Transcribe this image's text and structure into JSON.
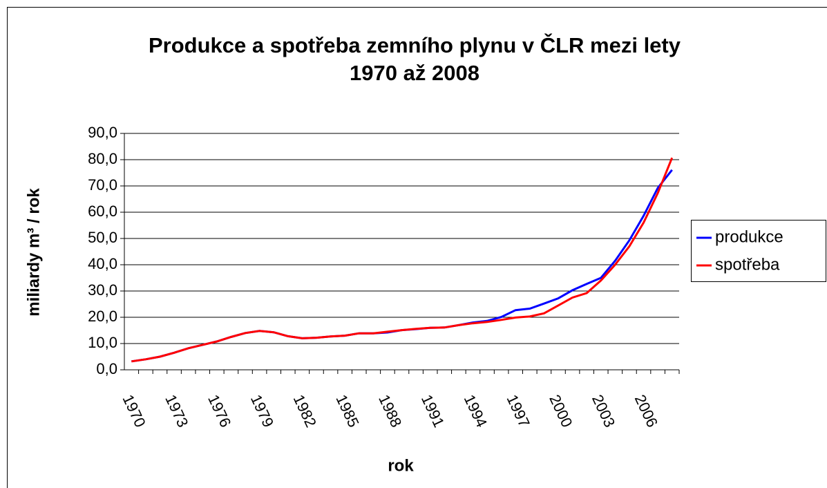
{
  "chart_data": {
    "type": "line",
    "title": [
      "Produkce a spotřeba zemního plynu v ČLR mezi lety",
      "1970 až 2008"
    ],
    "x_label": "rok",
    "y_label": "miliardy m³ / rok",
    "categories": [
      "1970",
      null,
      null,
      "1973",
      null,
      null,
      "1976",
      null,
      null,
      "1979",
      null,
      null,
      "1982",
      null,
      null,
      "1985",
      null,
      null,
      "1988",
      null,
      null,
      "1991",
      null,
      null,
      "1994",
      null,
      null,
      "1997",
      null,
      null,
      "2000",
      null,
      null,
      "2003",
      null,
      null,
      "2006",
      null,
      null
    ],
    "series": [
      {
        "name": "produkce",
        "color": "#0000ff",
        "values": [
          3.2,
          4.0,
          5.0,
          6.5,
          8.2,
          9.5,
          10.8,
          12.5,
          14.0,
          14.8,
          14.3,
          12.8,
          12.0,
          12.2,
          12.7,
          13.0,
          13.9,
          13.9,
          14.2,
          15.1,
          15.5,
          16.0,
          16.1,
          17.0,
          18.0,
          18.6,
          20.1,
          22.7,
          23.3,
          25.2,
          27.2,
          30.3,
          32.7,
          35.0,
          41.5,
          49.3,
          58.6,
          69.2,
          76.1
        ]
      },
      {
        "name": "spotřeba",
        "color": "#ff0000",
        "values": [
          3.2,
          4.0,
          5.0,
          6.5,
          8.2,
          9.5,
          10.8,
          12.5,
          14.0,
          14.8,
          14.3,
          12.8,
          12.0,
          12.2,
          12.7,
          13.0,
          13.9,
          13.9,
          14.5,
          15.1,
          15.6,
          16.0,
          16.1,
          17.0,
          17.7,
          18.2,
          19.0,
          19.9,
          20.3,
          21.5,
          24.5,
          27.5,
          29.2,
          34.0,
          40.0,
          47.0,
          56.0,
          67.3,
          80.7
        ]
      }
    ],
    "ylim": [
      0,
      90
    ],
    "yticks": [
      {
        "value": 0,
        "label": "0,0"
      },
      {
        "value": 10,
        "label": "10,0"
      },
      {
        "value": 20,
        "label": "20,0"
      },
      {
        "value": 30,
        "label": "30,0"
      },
      {
        "value": 40,
        "label": "40,0"
      },
      {
        "value": 50,
        "label": "50,0"
      },
      {
        "value": 60,
        "label": "60,0"
      },
      {
        "value": 70,
        "label": "70,0"
      },
      {
        "value": 80,
        "label": "80,0"
      },
      {
        "value": 90,
        "label": "90,0"
      }
    ],
    "grid": true,
    "legend": "right"
  }
}
